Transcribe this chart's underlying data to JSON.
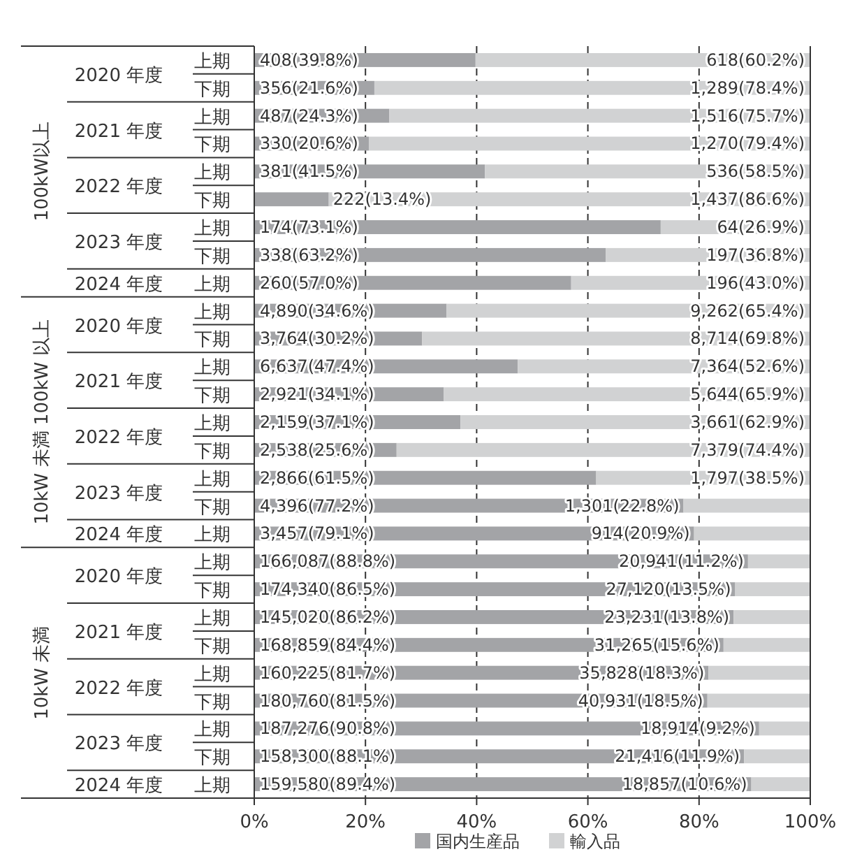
{
  "chart_data": {
    "type": "bar",
    "orientation": "horizontal",
    "stacked": true,
    "categories": [
      "上期",
      "下期",
      "上期",
      "下期",
      "上期",
      "下期",
      "上期",
      "下期",
      "上期",
      "上期",
      "下期",
      "上期",
      "下期",
      "上期",
      "下期",
      "上期",
      "下期",
      "上期",
      "上期",
      "下期",
      "上期",
      "下期",
      "上期",
      "下期",
      "上期",
      "下期",
      "上期"
    ],
    "series": [
      {
        "name": "国内生産品",
        "color": "#a3a4a7",
        "values": [
          39.8,
          21.6,
          24.3,
          20.6,
          41.5,
          13.4,
          73.1,
          63.2,
          57.0,
          34.6,
          30.2,
          47.4,
          34.1,
          37.1,
          25.6,
          61.5,
          77.2,
          79.1,
          88.8,
          86.5,
          86.2,
          84.4,
          81.7,
          81.5,
          90.8,
          88.1,
          89.4
        ],
        "value_labels": [
          "408(39.8%)",
          "356(21.6%)",
          "487(24.3%)",
          "330(20.6%)",
          "381(41.5%)",
          "222(13.4%)",
          "174(73.1%)",
          "338(63.2%)",
          "260(57.0%)",
          "4,890(34.6%)",
          "3,764(30.2%)",
          "6,637(47.4%)",
          "2,921(34.1%)",
          "2,159(37.1%)",
          "2,538(25.6%)",
          "2,866(61.5%)",
          "4,396(77.2%)",
          "3,457(79.1%)",
          "166,087(88.8%)",
          "174,340(86.5%)",
          "145,020(86.2%)",
          "168,859(84.4%)",
          "160,225(81.7%)",
          "180,760(81.5%)",
          "187,276(90.8%)",
          "158,300(88.1%)",
          "159,580(89.4%)"
        ]
      },
      {
        "name": "輸入品",
        "color": "#d1d2d3",
        "values": [
          60.2,
          78.4,
          75.7,
          79.4,
          58.5,
          86.6,
          26.9,
          36.8,
          43.0,
          65.4,
          69.8,
          52.6,
          65.9,
          62.9,
          74.4,
          38.5,
          22.8,
          20.9,
          11.2,
          13.5,
          13.8,
          15.6,
          18.3,
          18.5,
          9.2,
          11.9,
          10.6
        ],
        "value_labels": [
          "618(60.2%)",
          "1,289(78.4%)",
          "1,516(75.7%)",
          "1,270(79.4%)",
          "536(58.5%)",
          "1,437(86.6%)",
          "64(26.9%)",
          "197(36.8%)",
          "196(43.0%)",
          "9,262(65.4%)",
          "8,714(69.8%)",
          "7,364(52.6%)",
          "5,644(65.9%)",
          "3,661(62.9%)",
          "7,379(74.4%)",
          "1,797(38.5%)",
          "1,301(22.8%)",
          "914(20.9%)",
          "20,941(11.2%)",
          "27,120(13.5%)",
          "23,231(13.8%)",
          "31,265(15.6%)",
          "35,828(18.3%)",
          "40,931(18.5%)",
          "18,914(9.2%)",
          "21,416(11.9%)",
          "18,857(10.6%)"
        ]
      }
    ],
    "xlim": [
      0,
      100
    ],
    "xticks": [
      {
        "value": 0,
        "label": "0%"
      },
      {
        "value": 20,
        "label": "20%"
      },
      {
        "value": 40,
        "label": "40%"
      },
      {
        "value": 60,
        "label": "60%"
      },
      {
        "value": 80,
        "label": "80%"
      },
      {
        "value": 100,
        "label": "100%"
      }
    ],
    "grid": "x",
    "legend": "bottom",
    "annotations": [
      "100kW以上",
      "2020 年度",
      "2021 年度",
      "2022 年度",
      "2023 年度",
      "2024 年度",
      "10kW 未満 100kW 以上",
      "2020 年度",
      "2021 年度",
      "2022 年度",
      "2023 年度",
      "2024 年度",
      "10kW 未満",
      "2020 年度",
      "2021 年度",
      "2022 年度",
      "2023 年度",
      "2024 年度"
    ]
  }
}
